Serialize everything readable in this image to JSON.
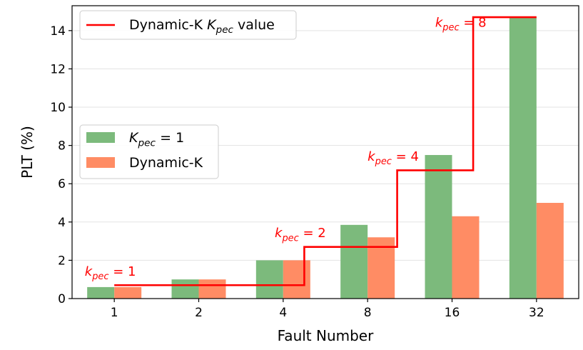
{
  "chart_data": {
    "type": "bar",
    "title": "",
    "xlabel": "Fault Number",
    "ylabel": "PLT (%)",
    "ylim": [
      0,
      15.3
    ],
    "yticks": [
      0,
      2,
      4,
      6,
      8,
      10,
      12,
      14
    ],
    "grid": "horizontal",
    "categories": [
      "1",
      "2",
      "4",
      "8",
      "16",
      "32"
    ],
    "series": [
      {
        "name": "K_pec = 1",
        "color": "#7cba7c",
        "values": [
          0.6,
          1.0,
          2.0,
          3.85,
          7.5,
          14.7
        ]
      },
      {
        "name": "Dynamic-K",
        "color": "#ff8c64",
        "values": [
          0.6,
          1.0,
          2.0,
          3.2,
          4.3,
          5.0
        ]
      }
    ],
    "step_line": {
      "name": "Dynamic-K K_pec value",
      "color": "#ff0000",
      "x_start": 0,
      "x_end": 5,
      "segments": [
        {
          "y": 0.7,
          "until": 2.25
        },
        {
          "y": 2.7,
          "until": 3.35
        },
        {
          "y": 6.7,
          "until": 4.25
        },
        {
          "y": 14.7,
          "until": 5.0
        }
      ]
    },
    "annotations": [
      {
        "label": "k_pec = 1",
        "x": -0.35,
        "y": 1.2
      },
      {
        "label": "k_pec = 2",
        "x": 1.9,
        "y": 3.2
      },
      {
        "label": "k_pec = 4",
        "x": 3.0,
        "y": 7.2
      },
      {
        "label": "k_pec = 8",
        "x": 3.8,
        "y": 14.2
      }
    ],
    "legends": {
      "line": {
        "placement": "top-left",
        "label": "Dynamic-K K_pec value"
      },
      "bars": {
        "placement": "center-left",
        "labels": [
          "K_pec = 1",
          "Dynamic-K"
        ]
      }
    }
  }
}
